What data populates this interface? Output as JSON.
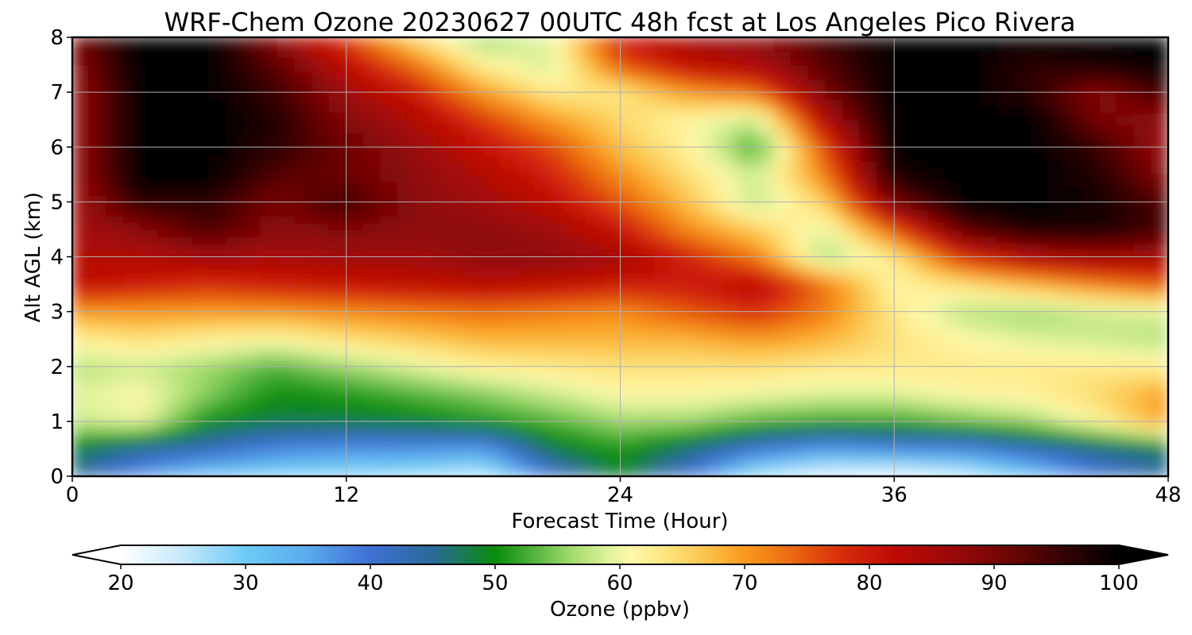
{
  "chart_data": {
    "type": "heatmap",
    "title": "WRF-Chem Ozone  20230627 00UTC 48h fcst at Los Angeles Pico Rivera",
    "xlabel": "Forecast Time (Hour)",
    "ylabel": "Alt AGL (km)",
    "xlim": [
      0,
      48
    ],
    "ylim": [
      0,
      8
    ],
    "x_ticks": [
      "0",
      "12",
      "24",
      "36",
      "48"
    ],
    "y_ticks": [
      "0",
      "1",
      "2",
      "3",
      "4",
      "5",
      "6",
      "7",
      "8"
    ],
    "grid": true,
    "x": [
      0,
      3,
      6,
      9,
      12,
      15,
      18,
      21,
      24,
      27,
      30,
      33,
      36,
      39,
      42,
      45,
      48
    ],
    "y": [
      0,
      0.5,
      1,
      1.5,
      2,
      2.5,
      3,
      3.5,
      4,
      4.5,
      5,
      5.5,
      6,
      6.5,
      7,
      7.5,
      8
    ],
    "z": [
      [
        46,
        36,
        30,
        28,
        27,
        26,
        24,
        40,
        49,
        40,
        25,
        21,
        20,
        23,
        30,
        40,
        45
      ],
      [
        48,
        44,
        42,
        38,
        37,
        37,
        36,
        48,
        51,
        46,
        40,
        36,
        38,
        38,
        42,
        45,
        47
      ],
      [
        58,
        60,
        50,
        48,
        48,
        49,
        51,
        53,
        56,
        56,
        53,
        52,
        52,
        54,
        56,
        62,
        70
      ],
      [
        59,
        61,
        55,
        50,
        51,
        53,
        55,
        58,
        61,
        61,
        60,
        59,
        59,
        61,
        62,
        65,
        70
      ],
      [
        57,
        58,
        56,
        53,
        56,
        59,
        62,
        63,
        64,
        64,
        64,
        63,
        63,
        63,
        63,
        63,
        62
      ],
      [
        62,
        64,
        62,
        61,
        64,
        66,
        68,
        68,
        68,
        68,
        70,
        68,
        64,
        61,
        59,
        58,
        57
      ],
      [
        70,
        70,
        70,
        70,
        71,
        72,
        73,
        72,
        71,
        75,
        78,
        72,
        63,
        57,
        56,
        58,
        59
      ],
      [
        82,
        80,
        78,
        80,
        81,
        82,
        83,
        82,
        80,
        80,
        83,
        73,
        61,
        64,
        68,
        72,
        75
      ],
      [
        84,
        84,
        86,
        85,
        86,
        86,
        88,
        88,
        86,
        79,
        72,
        56,
        63,
        78,
        84,
        86,
        85
      ],
      [
        85,
        88,
        94,
        88,
        89,
        88,
        88,
        86,
        80,
        71,
        66,
        59,
        75,
        92,
        98,
        98,
        94
      ],
      [
        85,
        96,
        96,
        90,
        95,
        88,
        86,
        82,
        75,
        67,
        57,
        66,
        90,
        100,
        100,
        98,
        93
      ],
      [
        86,
        100,
        100,
        93,
        91,
        88,
        84,
        79,
        71,
        64,
        58,
        72,
        98,
        100,
        100,
        97,
        88
      ],
      [
        86,
        100,
        100,
        96,
        91,
        87,
        81,
        76,
        67,
        62,
        52,
        76,
        100,
        100,
        100,
        95,
        86
      ],
      [
        86,
        100,
        100,
        97,
        89,
        84,
        77,
        70,
        65,
        61,
        58,
        84,
        100,
        100,
        100,
        90,
        87
      ],
      [
        86,
        100,
        100,
        95,
        86,
        80,
        70,
        63,
        63,
        70,
        73,
        90,
        100,
        100,
        96,
        88,
        95
      ],
      [
        88,
        100,
        100,
        92,
        82,
        73,
        62,
        58,
        75,
        82,
        85,
        93,
        100,
        100,
        96,
        98,
        100
      ],
      [
        90,
        100,
        100,
        88,
        76,
        64,
        55,
        60,
        80,
        86,
        88,
        95,
        100,
        100,
        100,
        100,
        100
      ]
    ],
    "colorbar": {
      "label": "Ozone  (ppbv)",
      "min": 20,
      "max": 100,
      "ticks": [
        "20",
        "30",
        "40",
        "50",
        "60",
        "70",
        "80",
        "90",
        "100"
      ],
      "extend": "both",
      "stops": [
        [
          20,
          "#ffffff"
        ],
        [
          25,
          "#c6e8fb"
        ],
        [
          30,
          "#6ccbf6"
        ],
        [
          35,
          "#5aaaee"
        ],
        [
          40,
          "#3e70d4"
        ],
        [
          45,
          "#2a6a9a"
        ],
        [
          50,
          "#0a8c0a"
        ],
        [
          53,
          "#4fb23c"
        ],
        [
          56,
          "#9fd96a"
        ],
        [
          59,
          "#dff29a"
        ],
        [
          61,
          "#fff8a8"
        ],
        [
          64,
          "#fde27a"
        ],
        [
          67,
          "#fcc24a"
        ],
        [
          70,
          "#f99a1c"
        ],
        [
          74,
          "#ea6610"
        ],
        [
          78,
          "#d52a0a"
        ],
        [
          82,
          "#bf0a05"
        ],
        [
          87,
          "#980808"
        ],
        [
          92,
          "#640505"
        ],
        [
          96,
          "#2e0202"
        ],
        [
          100,
          "#000000"
        ]
      ]
    }
  }
}
